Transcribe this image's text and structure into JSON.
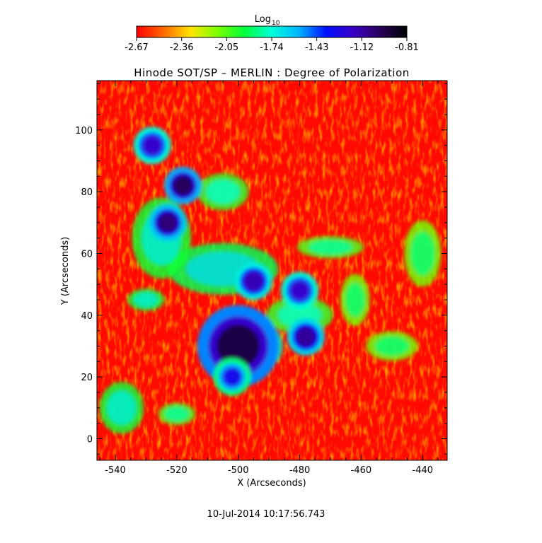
{
  "chart_data": {
    "type": "heatmap",
    "title": "Hinode SOT/SP – MERLIN : Degree of Polarization",
    "xlabel": "X (Arcseconds)",
    "ylabel": "Y (Arcseconds)",
    "xlim": [
      -546,
      -432
    ],
    "ylim": [
      -7,
      116
    ],
    "x_ticks": [
      -540,
      -520,
      -500,
      -480,
      -460,
      -440
    ],
    "y_ticks": [
      0,
      20,
      40,
      60,
      80,
      100
    ],
    "colorbar": {
      "label": "Log",
      "label_subscript": "10",
      "range": [
        -2.67,
        -0.81
      ],
      "ticks": [
        "-2.67",
        "-2.36",
        "-2.05",
        "-1.74",
        "-1.43",
        "-1.12",
        "-0.81"
      ],
      "colors": [
        "#ff0000",
        "#ff6a00",
        "#ffe400",
        "#7aff00",
        "#00ff3c",
        "#00ffd8",
        "#00b4ff",
        "#0010ff",
        "#3a00c8",
        "#28005a",
        "#000000"
      ]
    },
    "features": [
      {
        "name": "sunspot",
        "x": -500,
        "y": 30,
        "value": -0.95
      },
      {
        "name": "pore",
        "x": -478,
        "y": 33,
        "value": -1.1
      },
      {
        "name": "pore",
        "x": -495,
        "y": 51,
        "value": -1.15
      },
      {
        "name": "pore",
        "x": -480,
        "y": 48,
        "value": -1.2
      },
      {
        "name": "pore",
        "x": -518,
        "y": 82,
        "value": -1.0
      },
      {
        "name": "pore",
        "x": -523,
        "y": 70,
        "value": -1.05
      },
      {
        "name": "pore",
        "x": -528,
        "y": 95,
        "value": -1.2
      },
      {
        "name": "pore",
        "x": -502,
        "y": 20,
        "value": -1.3
      }
    ],
    "grid": false,
    "date_label": "10-Jul-2014 10:17:56.743"
  }
}
